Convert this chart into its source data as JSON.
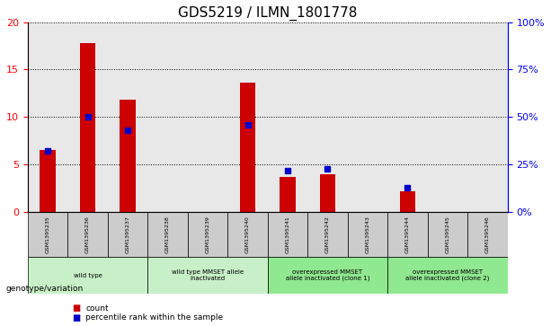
{
  "title": "GDS5219 / ILMN_1801778",
  "samples": [
    "GSM1395235",
    "GSM1395236",
    "GSM1395237",
    "GSM1395238",
    "GSM1395239",
    "GSM1395240",
    "GSM1395241",
    "GSM1395242",
    "GSM1395243",
    "GSM1395244",
    "GSM1395245",
    "GSM1395246"
  ],
  "counts": [
    6.5,
    17.8,
    11.8,
    0,
    0,
    13.6,
    3.7,
    4.0,
    0,
    2.2,
    0,
    0
  ],
  "percentiles": [
    32,
    50,
    43,
    0,
    0,
    46,
    22,
    23,
    0,
    13,
    0,
    0
  ],
  "ylim_left": [
    0,
    20
  ],
  "ylim_right": [
    0,
    100
  ],
  "yticks_left": [
    0,
    5,
    10,
    15,
    20
  ],
  "yticks_right": [
    0,
    25,
    50,
    75,
    100
  ],
  "ytick_labels_right": [
    "0%",
    "25%",
    "50%",
    "75%",
    "100%"
  ],
  "bar_color": "#cc0000",
  "dot_color": "#0000cc",
  "groups": [
    {
      "label": "wild type",
      "start": 0,
      "end": 2,
      "color": "#c8f0c8"
    },
    {
      "label": "wild type MMSET allele\ninactivated",
      "start": 3,
      "end": 5,
      "color": "#c8f0c8"
    },
    {
      "label": "overexpressed MMSET\nallele inactivated (clone 1)",
      "start": 6,
      "end": 8,
      "color": "#90e890"
    },
    {
      "label": "overexpressed MMSET\nallele inactivated (clone 2)",
      "start": 9,
      "end": 11,
      "color": "#90e890"
    }
  ],
  "genotype_label": "genotype/variation",
  "legend_items": [
    {
      "color": "#cc0000",
      "label": "count"
    },
    {
      "color": "#0000cc",
      "label": "percentile rank within the sample"
    }
  ],
  "grid_color": "#000000",
  "bg_color": "#ffffff",
  "plot_bg": "#ffffff",
  "axis_bg": "#e8e8e8",
  "title_fontsize": 11,
  "tick_fontsize": 7,
  "label_fontsize": 8
}
